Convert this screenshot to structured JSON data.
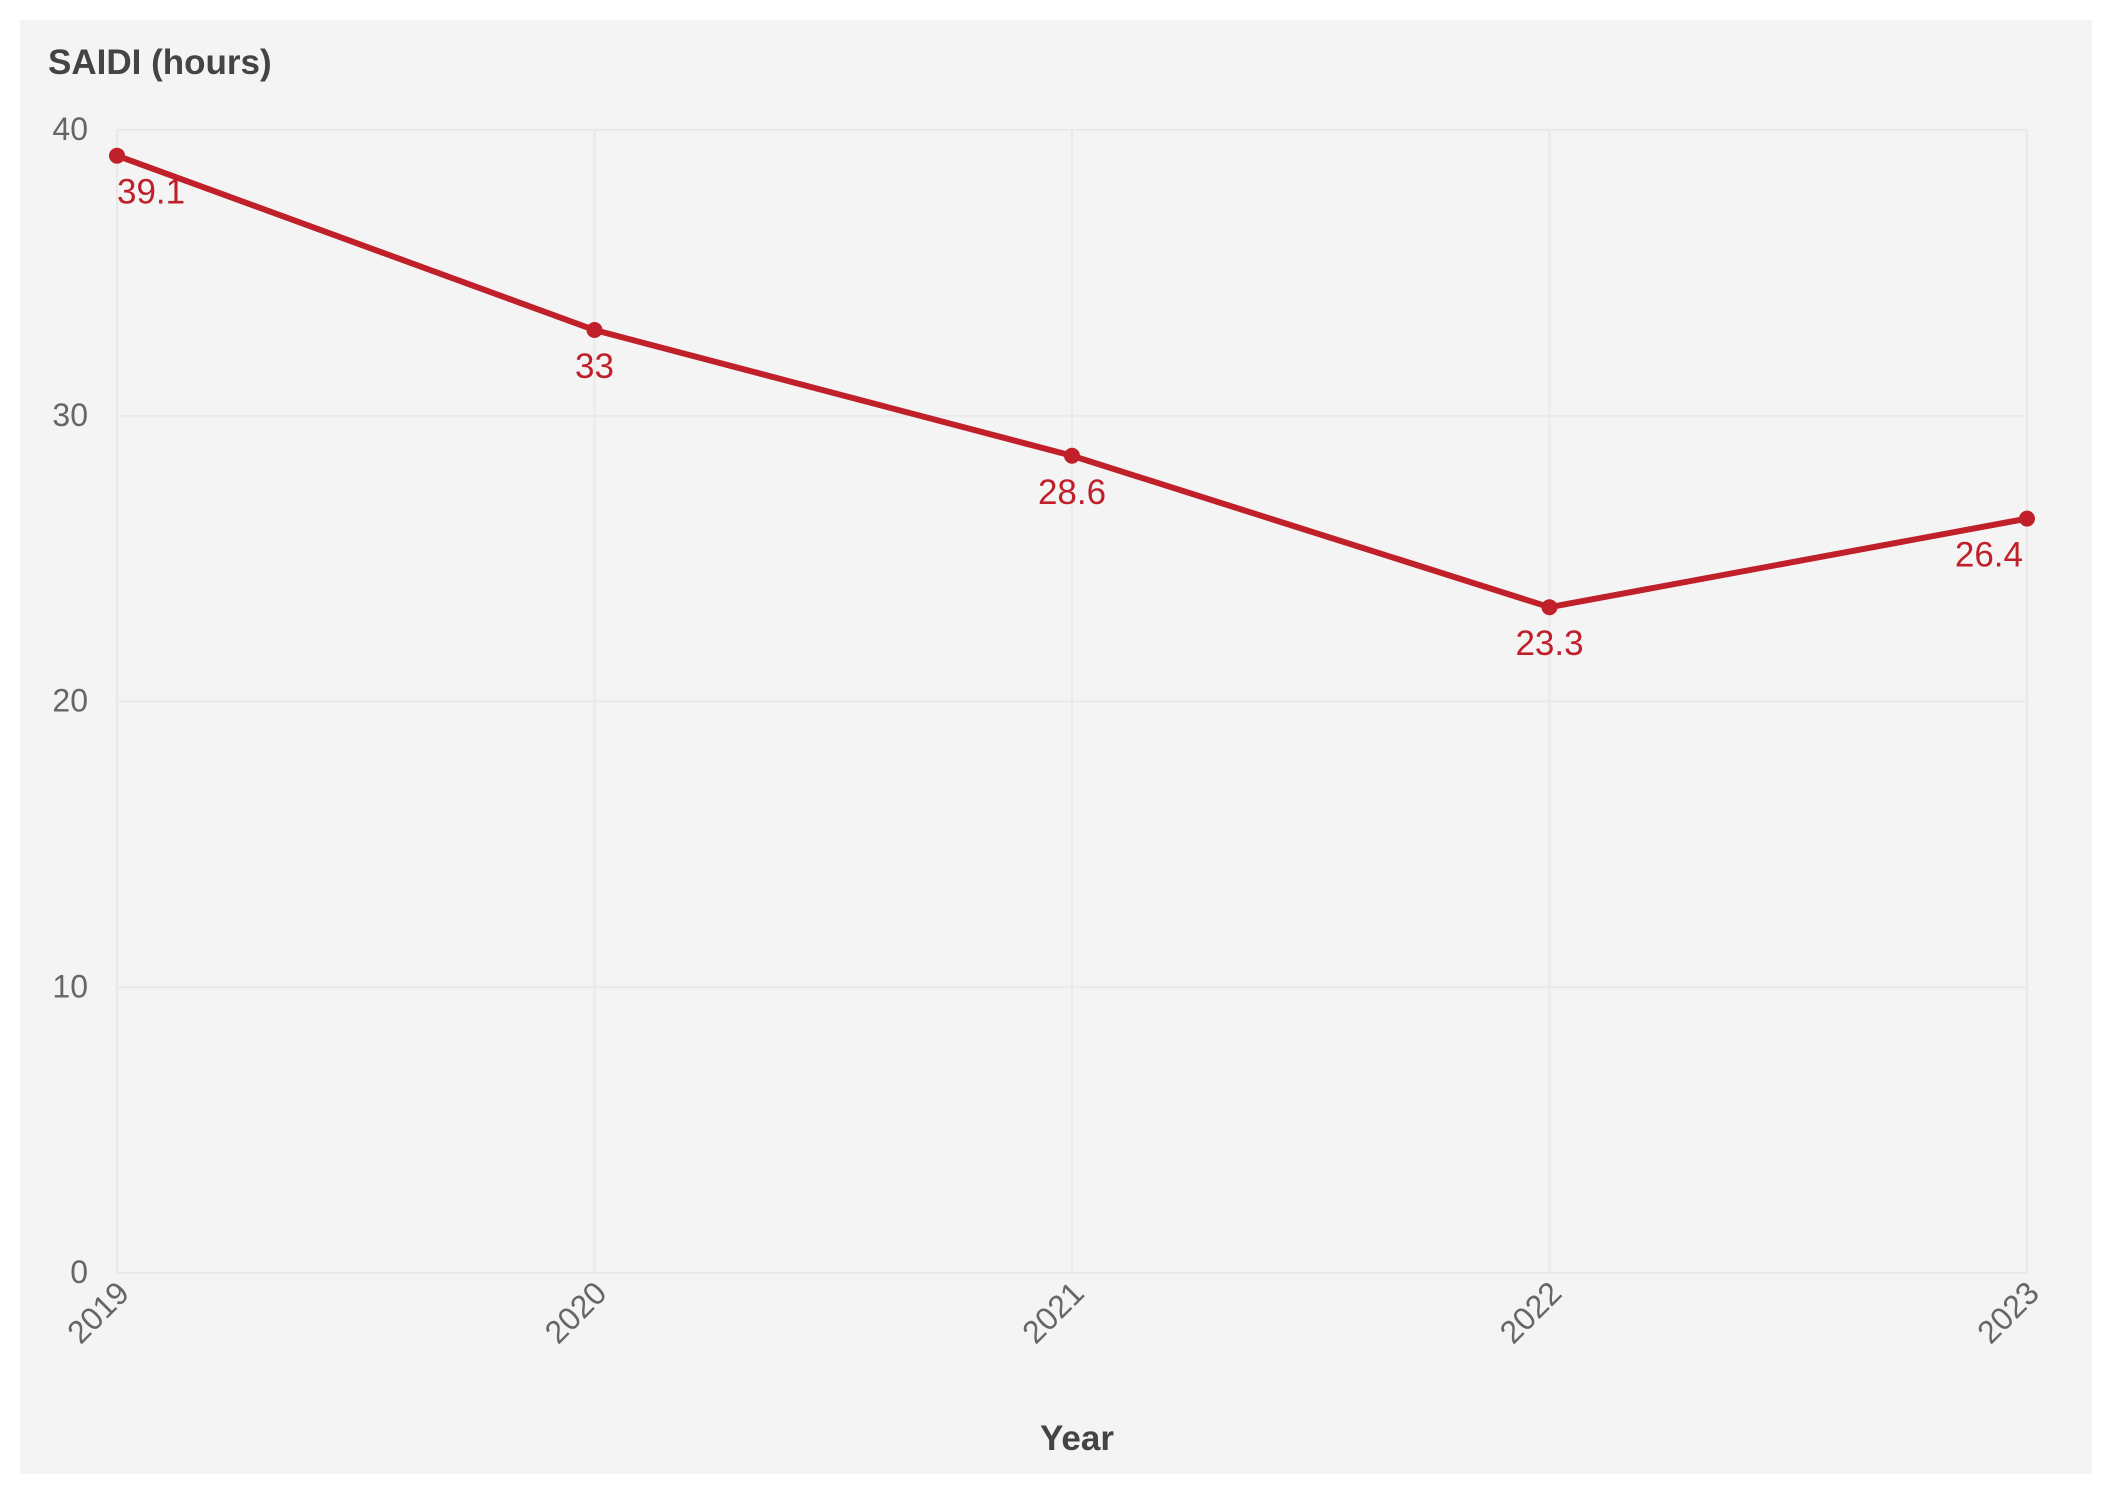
{
  "chart_data": {
    "type": "line",
    "title": "",
    "ylabel": "SAIDI (hours)",
    "xlabel": "Year",
    "categories": [
      "2019",
      "2020",
      "2021",
      "2022",
      "2023"
    ],
    "series": [
      {
        "values": [
          39.1,
          33,
          28.6,
          23.3,
          26.4
        ],
        "labels": [
          "39.1",
          "33",
          "28.6",
          "23.3",
          "26.4"
        ],
        "color": "#c0202a"
      }
    ],
    "ylim": [
      0,
      40
    ],
    "yticks": [
      {
        "value": 0,
        "label": "0"
      },
      {
        "value": 10,
        "label": "10"
      },
      {
        "value": 20,
        "label": "20"
      },
      {
        "value": 30,
        "label": "30"
      },
      {
        "value": 40,
        "label": "40"
      }
    ],
    "grid": true,
    "legend": "none"
  }
}
